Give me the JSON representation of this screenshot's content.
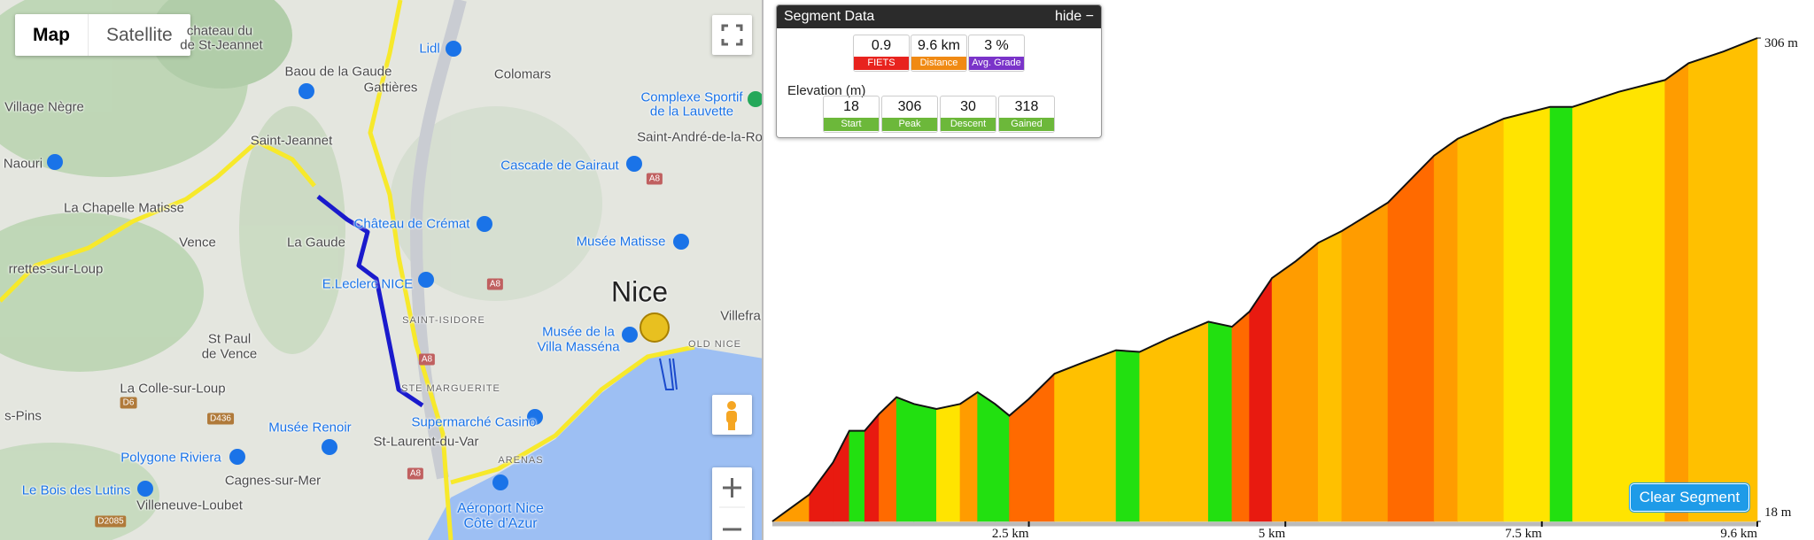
{
  "map": {
    "buttons": [
      "Map",
      "Satellite"
    ],
    "labels": [
      "chateau du",
      "de St-Jeannet",
      "Baou de la Gaude",
      "Gattières",
      "Lidl",
      "Colomars",
      "Complexe Sportif",
      "de la Lauvette",
      "Village Nègre",
      "Naouri",
      "Saint-Jeannet",
      "Cascade de Gairaut",
      "Saint-André-de-la-Ro",
      "La Chapelle Matisse",
      "Château de Crémat",
      "Musée Matisse",
      "Vence",
      "La Gaude",
      "rrettes-sur-Loup",
      "E.Leclerc NICE",
      "Nice",
      "Villefra",
      "SAINT-ISIDORE",
      "Musée de la",
      "Villa Masséna",
      "OLD NICE",
      "St Paul",
      "de Vence",
      "STE MARGUERITE",
      "La Colle-sur-Loup",
      "s-Pins",
      "Musée Renoir",
      "Supermarché Casino",
      "St-Laurent-du-Var",
      "Polygone Riviera",
      "ARENAS",
      "Cagnes-sur-Mer",
      "Le Bois des Lutins",
      "Villeneuve-Loubet",
      "Aéroport Nice",
      "Côte d'Azur"
    ],
    "road_shields": [
      "A8",
      "A8",
      "A8",
      "A8",
      "D6",
      "D436",
      "D2085"
    ]
  },
  "segment_panel": {
    "title": "Segment Data",
    "hide": "hide",
    "stats": [
      {
        "value": 0.9,
        "label": "FIETS"
      },
      {
        "value": "9.6 km",
        "label": "Distance"
      },
      {
        "value": "3 %",
        "label": "Avg. Grade"
      }
    ],
    "elevation_title": "Elevation (m)",
    "elevation_stats": [
      {
        "value": 18,
        "label": "Start"
      },
      {
        "value": 306,
        "label": "Peak"
      },
      {
        "value": 30,
        "label": "Descent"
      },
      {
        "value": 318,
        "label": "Gained"
      }
    ]
  },
  "profile": {
    "type": "area",
    "x": [
      0,
      0.36,
      0.59,
      0.75,
      0.9,
      1.04,
      1.21,
      1.38,
      1.6,
      1.83,
      2.0,
      2.17,
      2.31,
      2.5,
      2.75,
      3.0,
      3.35,
      3.58,
      3.86,
      4.25,
      4.48,
      4.65,
      4.87,
      5.1,
      5.32,
      5.55,
      6.0,
      6.45,
      6.68,
      7.13,
      7.58,
      7.8,
      8.25,
      8.7,
      8.93,
      9.27,
      9.6
    ],
    "values": [
      18,
      34,
      53,
      72,
      72,
      82,
      92,
      88,
      85,
      88,
      95,
      88,
      81,
      91,
      106,
      112,
      120,
      119,
      127,
      137,
      134,
      143,
      163,
      173,
      184,
      191,
      208,
      236,
      246,
      258,
      265,
      265,
      274,
      281,
      291,
      298,
      306
    ],
    "xlim": [
      0,
      9.6
    ],
    "ylim": [
      18,
      306
    ],
    "xticks": [
      {
        "value": 2.5,
        "label": "2.5 km"
      },
      {
        "value": 5,
        "label": "5 km"
      },
      {
        "value": 7.5,
        "label": "7.5 km"
      },
      {
        "value": 9.6,
        "label": "9.6 km"
      }
    ],
    "yticks": [
      {
        "value": 18,
        "label": "18 m"
      },
      {
        "value": 306,
        "label": "306 m"
      }
    ],
    "button": "Clear Segment"
  }
}
